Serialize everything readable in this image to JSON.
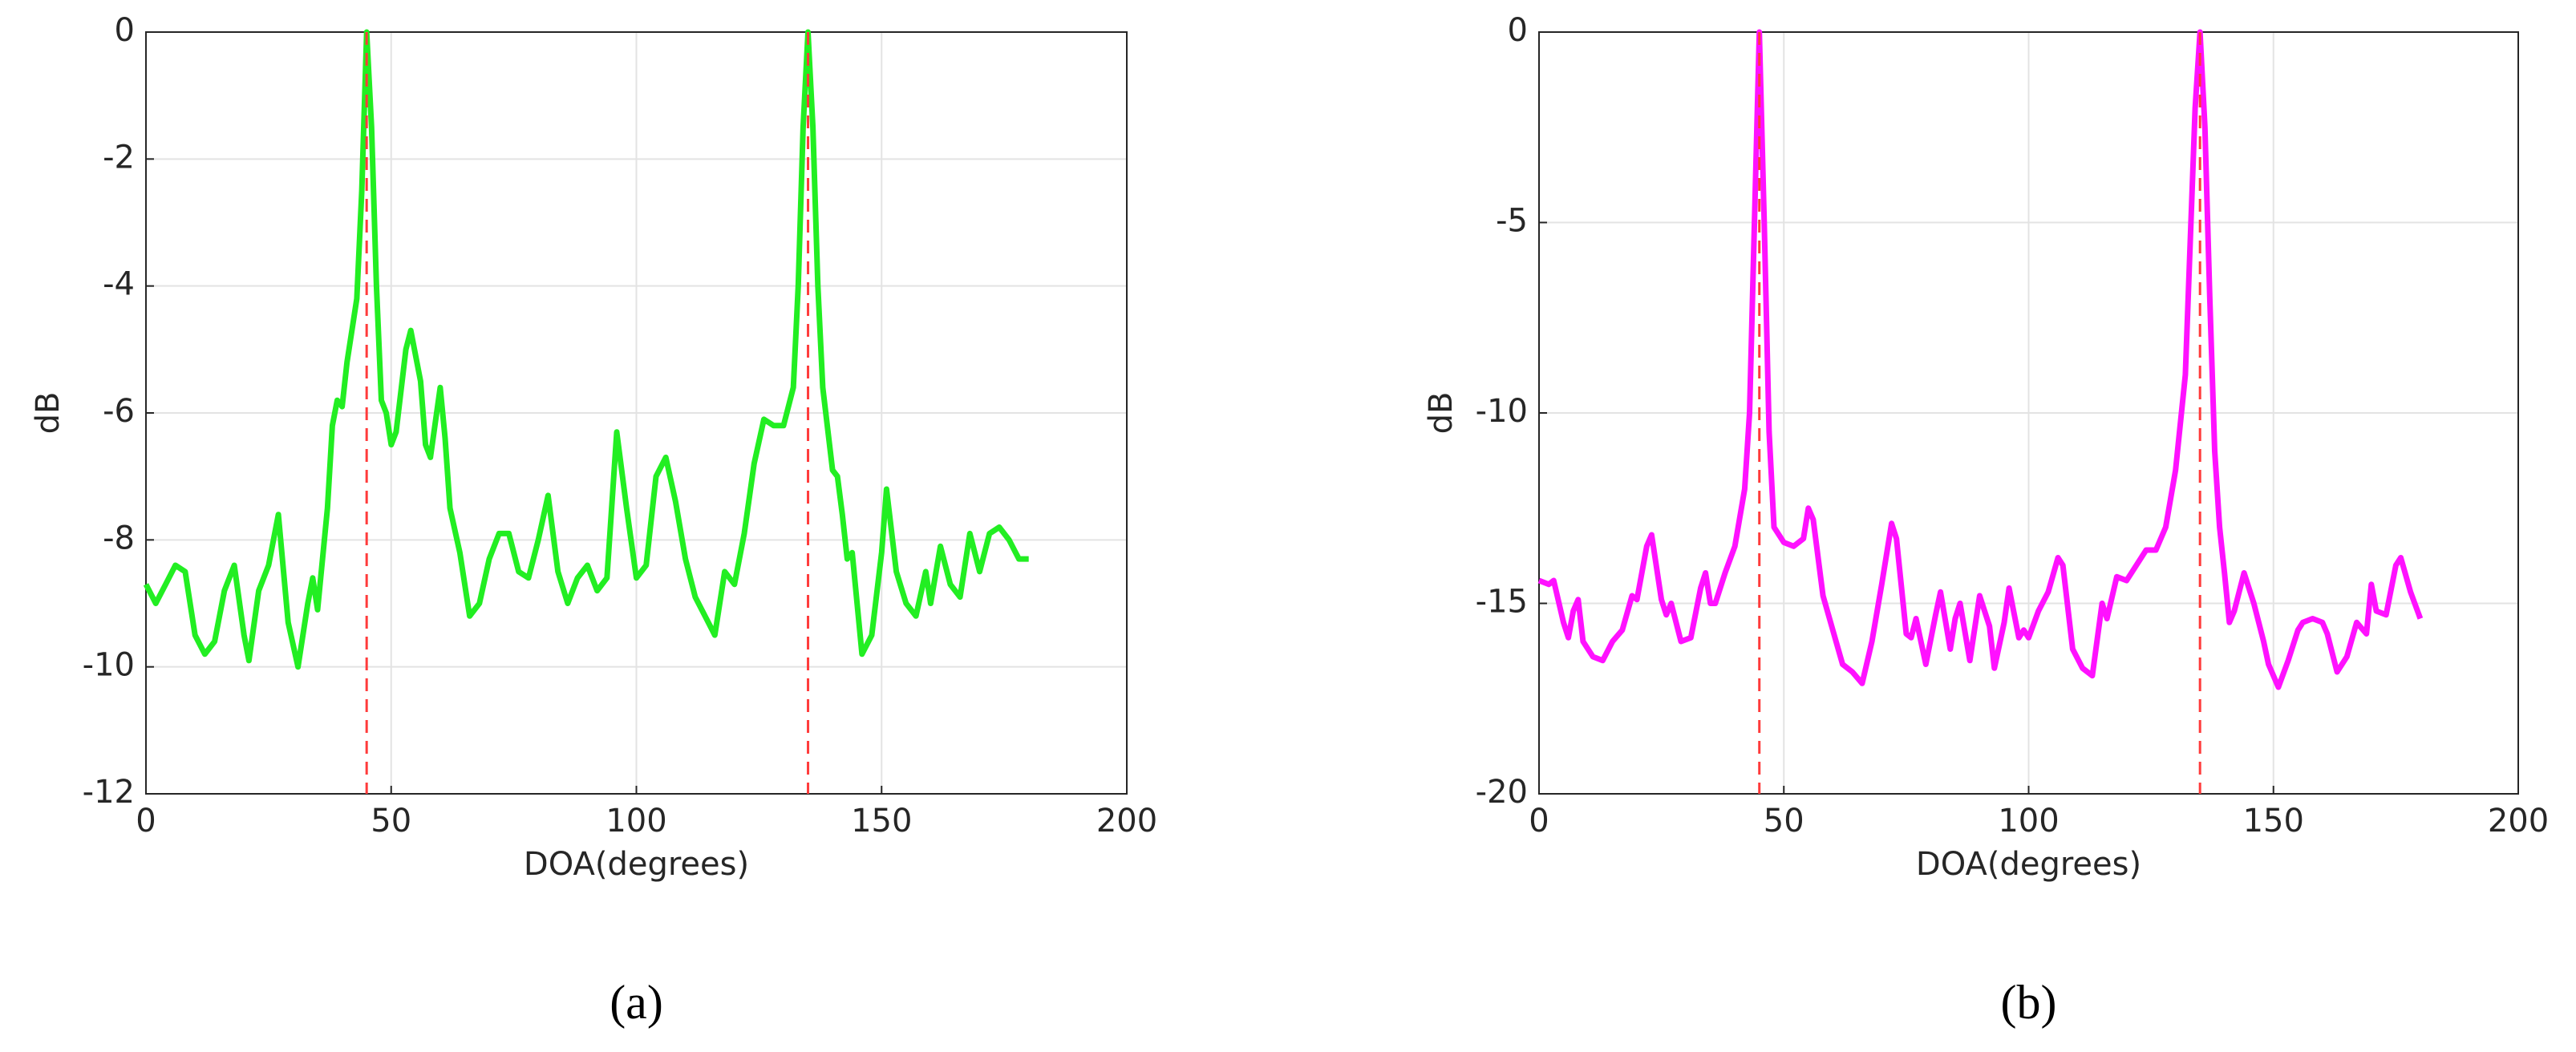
{
  "chart_data": [
    {
      "type": "line",
      "caption": "(a)",
      "xlabel": "DOA(degrees)",
      "ylabel": "dB",
      "xlim": [
        0,
        200
      ],
      "xticks": [
        0,
        50,
        100,
        150,
        200
      ],
      "ylim": [
        -12,
        0
      ],
      "yticks": [
        -12,
        -10,
        -8,
        -6,
        -4,
        -2,
        0
      ],
      "grid": true,
      "vlines": [
        45,
        135
      ],
      "vline_color": "#ff3b3b",
      "x": [
        0,
        2,
        4,
        6,
        8,
        10,
        12,
        14,
        16,
        18,
        20,
        21,
        23,
        25,
        27,
        29,
        31,
        33,
        34,
        35,
        37,
        38,
        39,
        40,
        41,
        43,
        44,
        45,
        46,
        47,
        48,
        49,
        50,
        51,
        53,
        54,
        56,
        57,
        58,
        60,
        61,
        62,
        64,
        66,
        68,
        70,
        72,
        74,
        76,
        78,
        80,
        82,
        84,
        86,
        88,
        90,
        92,
        94,
        96,
        98,
        100,
        102,
        104,
        106,
        108,
        110,
        112,
        114,
        116,
        118,
        120,
        122,
        124,
        126,
        128,
        130,
        132,
        133,
        134,
        135,
        136,
        137,
        138,
        140,
        141,
        142,
        143,
        144,
        146,
        148,
        150,
        151,
        153,
        155,
        157,
        159,
        160,
        162,
        164,
        166,
        168,
        170,
        172,
        174,
        176,
        178,
        180
      ],
      "series": [
        {
          "color": "#22ee22",
          "values": [
            -8.7,
            -9.0,
            -8.7,
            -8.4,
            -8.5,
            -9.5,
            -9.8,
            -9.6,
            -8.8,
            -8.4,
            -9.5,
            -9.9,
            -8.8,
            -8.4,
            -7.6,
            -9.3,
            -10.0,
            -9.0,
            -8.6,
            -9.1,
            -7.5,
            -6.2,
            -5.8,
            -5.9,
            -5.2,
            -4.2,
            -2.5,
            0,
            -1.5,
            -4.0,
            -5.8,
            -6.0,
            -6.5,
            -6.3,
            -5.0,
            -4.7,
            -5.5,
            -6.5,
            -6.7,
            -5.6,
            -6.4,
            -7.5,
            -8.2,
            -9.2,
            -9.0,
            -8.3,
            -7.9,
            -7.9,
            -8.5,
            -8.6,
            -8.0,
            -7.3,
            -8.5,
            -9.0,
            -8.6,
            -8.4,
            -8.8,
            -8.6,
            -6.3,
            -7.5,
            -8.6,
            -8.4,
            -7.0,
            -6.7,
            -7.4,
            -8.3,
            -8.9,
            -9.2,
            -9.5,
            -8.5,
            -8.7,
            -7.9,
            -6.8,
            -6.1,
            -6.2,
            -6.2,
            -5.6,
            -4.0,
            -1.5,
            0,
            -1.5,
            -4.0,
            -5.6,
            -6.9,
            -7.0,
            -7.6,
            -8.3,
            -8.2,
            -9.8,
            -9.5,
            -8.2,
            -7.2,
            -8.5,
            -9.0,
            -9.2,
            -8.5,
            -9.0,
            -8.1,
            -8.7,
            -8.9,
            -7.9,
            -8.5,
            -7.9,
            -7.8,
            -8.0,
            -8.3,
            -8.3
          ]
        }
      ]
    },
    {
      "type": "line",
      "caption": "(b)",
      "xlabel": "DOA(degrees)",
      "ylabel": "dB",
      "xlim": [
        0,
        200
      ],
      "xticks": [
        0,
        50,
        100,
        150,
        200
      ],
      "ylim": [
        -20,
        0
      ],
      "yticks": [
        -20,
        -15,
        -10,
        -5,
        0
      ],
      "grid": true,
      "vlines": [
        45,
        135
      ],
      "vline_color": "#ff3b3b",
      "x": [
        0,
        2,
        3,
        5,
        6,
        7,
        8,
        9,
        11,
        13,
        15,
        17,
        19,
        20,
        22,
        23,
        25,
        26,
        27,
        29,
        31,
        33,
        34,
        35,
        36,
        38,
        40,
        42,
        43,
        44,
        45,
        46,
        47,
        48,
        50,
        52,
        54,
        55,
        56,
        58,
        60,
        62,
        64,
        66,
        68,
        70,
        72,
        73,
        75,
        76,
        77,
        79,
        81,
        82,
        84,
        85,
        86,
        88,
        90,
        92,
        93,
        95,
        96,
        98,
        99,
        100,
        102,
        104,
        106,
        107,
        109,
        111,
        113,
        115,
        116,
        118,
        120,
        122,
        124,
        126,
        128,
        130,
        132,
        133,
        134,
        135,
        136,
        137,
        138,
        139,
        140,
        141,
        142,
        144,
        146,
        148,
        149,
        151,
        153,
        155,
        156,
        158,
        160,
        161,
        163,
        165,
        167,
        169,
        170,
        171,
        173,
        175,
        176,
        178,
        180
      ],
      "series": [
        {
          "color": "#ff11ff",
          "values": [
            -14.4,
            -14.5,
            -14.4,
            -15.5,
            -15.9,
            -15.2,
            -14.9,
            -16.0,
            -16.4,
            -16.5,
            -16.0,
            -15.7,
            -14.8,
            -14.9,
            -13.5,
            -13.2,
            -14.9,
            -15.3,
            -15.0,
            -16.0,
            -15.9,
            -14.6,
            -14.2,
            -15.0,
            -15.0,
            -14.2,
            -13.5,
            -12.0,
            -10.0,
            -5.0,
            0,
            -5.0,
            -10.5,
            -13.0,
            -13.4,
            -13.5,
            -13.3,
            -12.5,
            -12.8,
            -14.8,
            -15.7,
            -16.6,
            -16.8,
            -17.1,
            -16.0,
            -14.5,
            -12.9,
            -13.3,
            -15.8,
            -15.9,
            -15.4,
            -16.6,
            -15.3,
            -14.7,
            -16.2,
            -15.4,
            -15.0,
            -16.5,
            -14.8,
            -15.6,
            -16.7,
            -15.5,
            -14.6,
            -15.9,
            -15.7,
            -15.9,
            -15.2,
            -14.7,
            -13.8,
            -14.0,
            -16.2,
            -16.7,
            -16.9,
            -15.0,
            -15.4,
            -14.3,
            -14.4,
            -14.0,
            -13.6,
            -13.6,
            -13.0,
            -11.5,
            -9.0,
            -5.5,
            -2.0,
            0,
            -2.5,
            -7.0,
            -11.0,
            -13.0,
            -14.2,
            -15.5,
            -15.2,
            -14.2,
            -15.0,
            -16.0,
            -16.6,
            -17.2,
            -16.5,
            -15.7,
            -15.5,
            -15.4,
            -15.5,
            -15.8,
            -16.8,
            -16.4,
            -15.5,
            -15.8,
            -14.5,
            -15.2,
            -15.3,
            -14.0,
            -13.8,
            -14.7,
            -15.4
          ]
        }
      ]
    }
  ]
}
